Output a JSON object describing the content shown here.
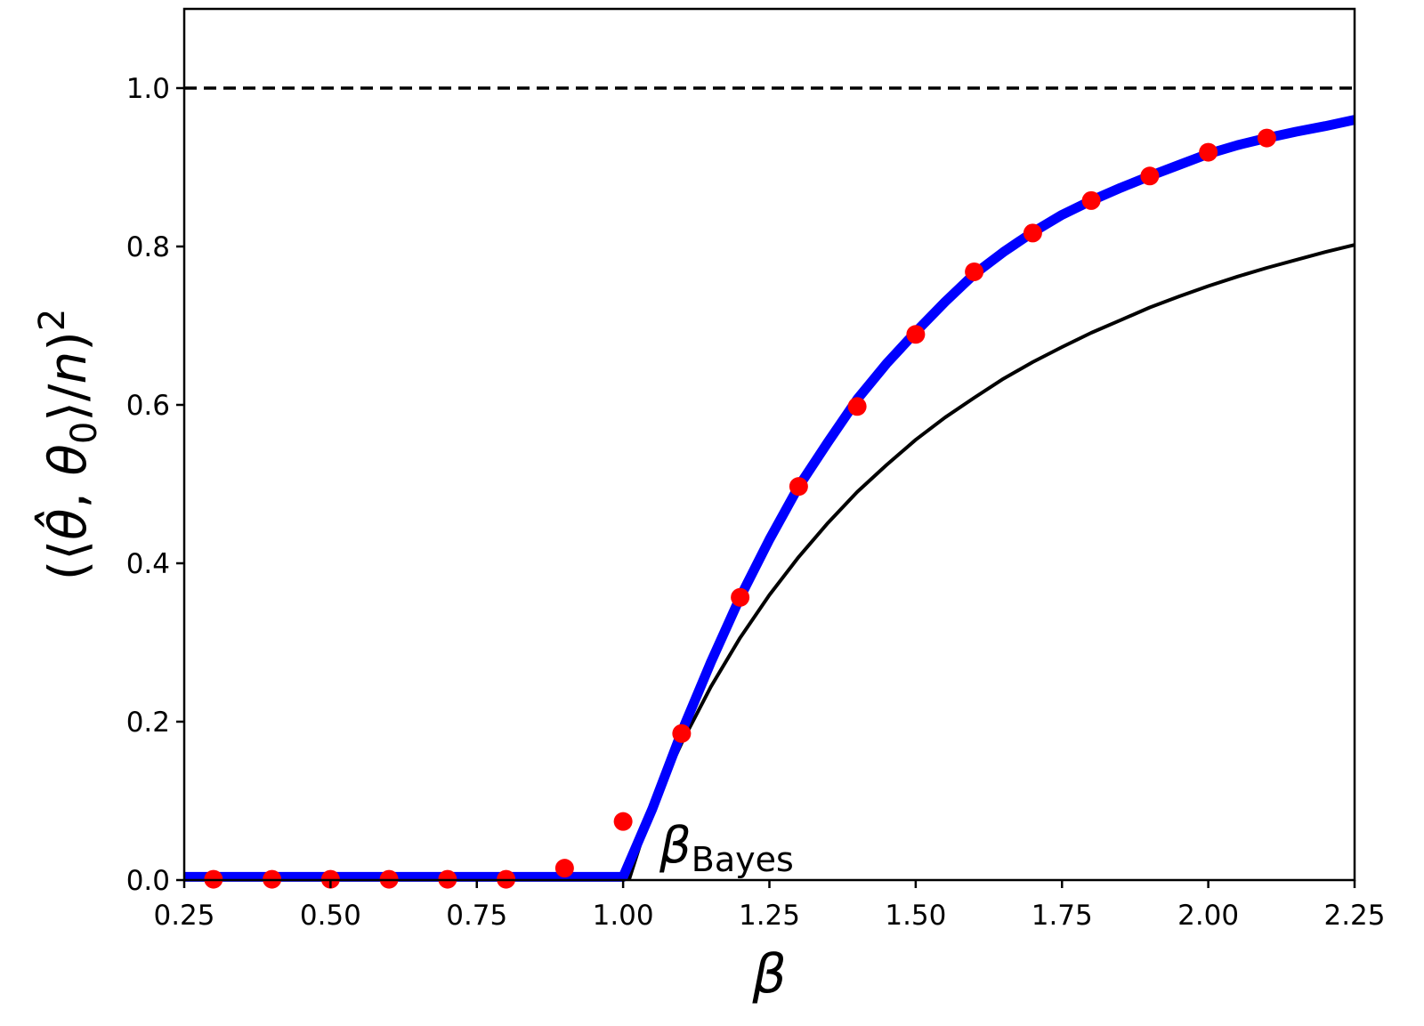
{
  "chart_data": {
    "type": "line",
    "xlabel": "β",
    "ylabel": "(⟨θ̂, θ₀⟩/n)²",
    "ylabel_parts": {
      "open": "(⟨",
      "theta_hat": "θ̂",
      "comma": ", ",
      "theta": "θ",
      "theta_sub": "0",
      "close": "⟩/",
      "n": "n",
      "paren": ")",
      "exp": "2"
    },
    "xlim": [
      0.25,
      2.25
    ],
    "ylim": [
      0.0,
      1.1
    ],
    "x_ticks": [
      "0.25",
      "0.50",
      "0.75",
      "1.00",
      "1.25",
      "1.50",
      "1.75",
      "2.00",
      "2.25"
    ],
    "y_ticks": [
      "0.0",
      "0.2",
      "0.4",
      "0.6",
      "0.8",
      "1.0"
    ],
    "grid": false,
    "legend": "none",
    "annotation": {
      "main": "β",
      "sub": "Bayes",
      "x": 1.05,
      "y": 0.02
    },
    "reference_line": {
      "y": 1.0,
      "style": "dashed",
      "color": "#000000"
    },
    "series": [
      {
        "style": "thick-line",
        "color": "#0000ff",
        "x": [
          0.25,
          0.5,
          0.75,
          0.99,
          1.0,
          1.05,
          1.1,
          1.15,
          1.2,
          1.25,
          1.3,
          1.35,
          1.4,
          1.45,
          1.5,
          1.55,
          1.6,
          1.65,
          1.7,
          1.75,
          1.8,
          1.85,
          1.9,
          1.95,
          2.0,
          2.05,
          2.1,
          2.15,
          2.2,
          2.25
        ],
        "y": [
          0.004,
          0.004,
          0.004,
          0.004,
          0.004,
          0.09,
          0.187,
          0.275,
          0.357,
          0.43,
          0.497,
          0.553,
          0.607,
          0.652,
          0.692,
          0.73,
          0.765,
          0.793,
          0.818,
          0.84,
          0.858,
          0.874,
          0.889,
          0.903,
          0.917,
          0.928,
          0.937,
          0.945,
          0.952,
          0.96
        ]
      },
      {
        "style": "thin-line",
        "color": "#000000",
        "x": [
          1.01,
          1.05,
          1.1,
          1.15,
          1.2,
          1.25,
          1.3,
          1.35,
          1.4,
          1.45,
          1.5,
          1.55,
          1.6,
          1.65,
          1.7,
          1.75,
          1.8,
          1.85,
          1.9,
          1.95,
          2.0,
          2.05,
          2.1,
          2.15,
          2.2,
          2.25
        ],
        "y": [
          0.0,
          0.093,
          0.173,
          0.244,
          0.306,
          0.36,
          0.408,
          0.451,
          0.49,
          0.524,
          0.556,
          0.584,
          0.609,
          0.633,
          0.654,
          0.673,
          0.691,
          0.707,
          0.723,
          0.737,
          0.75,
          0.762,
          0.773,
          0.783,
          0.793,
          0.802
        ]
      },
      {
        "style": "markers",
        "color": "#ff0000",
        "x": [
          0.3,
          0.4,
          0.5,
          0.6,
          0.7,
          0.8,
          0.9,
          1.0,
          1.1,
          1.2,
          1.3,
          1.4,
          1.5,
          1.6,
          1.7,
          1.8,
          1.9,
          2.0,
          2.1
        ],
        "y": [
          0.001,
          0.001,
          0.001,
          0.001,
          0.001,
          0.001,
          0.015,
          0.074,
          0.185,
          0.357,
          0.497,
          0.598,
          0.689,
          0.768,
          0.817,
          0.858,
          0.889,
          0.919,
          0.937
        ]
      }
    ]
  }
}
